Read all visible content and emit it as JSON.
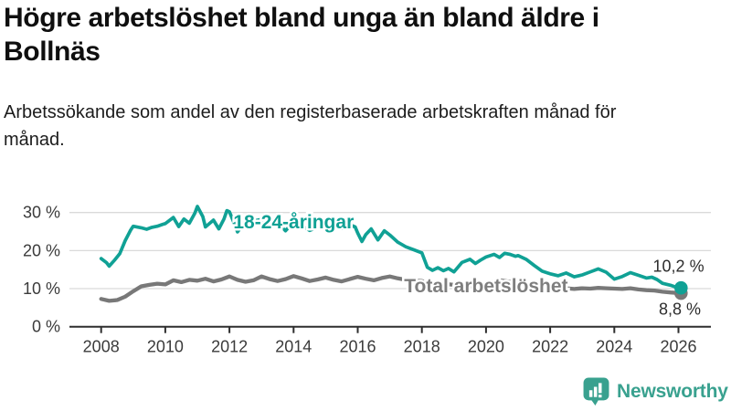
{
  "header": {
    "title": "Högre arbetslöshet bland unga än bland äldre i Bollnäs",
    "subtitle": "Arbetssökande som andel av den registerbaserade arbetskraften månad för månad."
  },
  "chart_data": {
    "type": "line",
    "title": "Högre arbetslöshet bland unga än bland äldre i Bollnäs",
    "subtitle": "Arbetssökande som andel av den registerbaserade arbetskraften månad för månad.",
    "x_axis": {
      "ticks": [
        2008,
        2010,
        2012,
        2014,
        2016,
        2018,
        2020,
        2022,
        2024,
        2026
      ],
      "tick_labels": [
        "2008",
        "2010",
        "2012",
        "2014",
        "2016",
        "2018",
        "2020",
        "2022",
        "2024",
        "2026"
      ],
      "range": [
        2007.0,
        2027.0
      ]
    },
    "y_axis": {
      "ticks": [
        0,
        10,
        20,
        30
      ],
      "tick_labels": [
        "0 %",
        "10 %",
        "20 %",
        "30 %"
      ],
      "range": [
        0,
        33
      ],
      "grid": true,
      "unit": "%"
    },
    "colors": {
      "grid": "#dadada",
      "axis": "#2e2e2e",
      "axis_text": "#3b3b3b",
      "young": "#10a195",
      "total": "#787878",
      "value_label": "#2d2d2d"
    },
    "series": [
      {
        "name": "18-24-åringar",
        "color": "#10a195",
        "end_label": "10,2 %",
        "end_value": 10.2,
        "points": [
          [
            2008.0,
            17.9
          ],
          [
            2008.17,
            16.8
          ],
          [
            2008.25,
            15.9
          ],
          [
            2008.42,
            17.5
          ],
          [
            2008.58,
            19.2
          ],
          [
            2008.75,
            22.6
          ],
          [
            2008.92,
            25.4
          ],
          [
            2009.0,
            26.4
          ],
          [
            2009.25,
            26.0
          ],
          [
            2009.42,
            25.6
          ],
          [
            2009.58,
            26.1
          ],
          [
            2009.75,
            26.4
          ],
          [
            2009.92,
            26.9
          ],
          [
            2010.0,
            27.1
          ],
          [
            2010.25,
            28.7
          ],
          [
            2010.42,
            26.3
          ],
          [
            2010.58,
            28.3
          ],
          [
            2010.75,
            27.2
          ],
          [
            2010.92,
            29.8
          ],
          [
            2011.0,
            31.6
          ],
          [
            2011.17,
            28.9
          ],
          [
            2011.25,
            26.2
          ],
          [
            2011.5,
            28.0
          ],
          [
            2011.67,
            25.7
          ],
          [
            2011.83,
            28.3
          ],
          [
            2011.92,
            30.5
          ],
          [
            2012.0,
            30.2
          ],
          [
            2012.17,
            26.7
          ],
          [
            2012.25,
            24.9
          ],
          [
            2012.5,
            27.7
          ],
          [
            2012.67,
            26.4
          ],
          [
            2012.83,
            27.9
          ],
          [
            2013.0,
            28.2
          ],
          [
            2013.25,
            26.1
          ],
          [
            2013.5,
            27.4
          ],
          [
            2013.75,
            25.2
          ],
          [
            2013.92,
            26.8
          ],
          [
            2014.0,
            27.1
          ],
          [
            2014.25,
            26.6
          ],
          [
            2014.5,
            25.3
          ],
          [
            2014.75,
            26.1
          ],
          [
            2015.0,
            25.5
          ],
          [
            2015.25,
            26.4
          ],
          [
            2015.5,
            25.8
          ],
          [
            2015.75,
            26.8
          ],
          [
            2015.92,
            26.2
          ],
          [
            2016.0,
            24.6
          ],
          [
            2016.13,
            22.4
          ],
          [
            2016.25,
            24.2
          ],
          [
            2016.42,
            25.7
          ],
          [
            2016.63,
            22.8
          ],
          [
            2016.83,
            25.2
          ],
          [
            2017.0,
            24.1
          ],
          [
            2017.25,
            22.2
          ],
          [
            2017.5,
            21.0
          ],
          [
            2017.75,
            20.2
          ],
          [
            2018.0,
            19.4
          ],
          [
            2018.17,
            15.6
          ],
          [
            2018.33,
            14.8
          ],
          [
            2018.5,
            15.5
          ],
          [
            2018.67,
            14.7
          ],
          [
            2018.83,
            15.3
          ],
          [
            2019.0,
            14.4
          ],
          [
            2019.25,
            16.9
          ],
          [
            2019.5,
            17.7
          ],
          [
            2019.67,
            16.6
          ],
          [
            2019.83,
            17.5
          ],
          [
            2020.0,
            18.3
          ],
          [
            2020.25,
            19.0
          ],
          [
            2020.42,
            18.2
          ],
          [
            2020.58,
            19.3
          ],
          [
            2020.75,
            19.0
          ],
          [
            2020.92,
            18.5
          ],
          [
            2021.0,
            18.7
          ],
          [
            2021.25,
            17.7
          ],
          [
            2021.5,
            16.1
          ],
          [
            2021.75,
            14.6
          ],
          [
            2021.92,
            14.1
          ],
          [
            2022.0,
            13.9
          ],
          [
            2022.25,
            13.4
          ],
          [
            2022.5,
            14.1
          ],
          [
            2022.75,
            13.1
          ],
          [
            2023.0,
            13.6
          ],
          [
            2023.25,
            14.4
          ],
          [
            2023.5,
            15.2
          ],
          [
            2023.75,
            14.3
          ],
          [
            2024.0,
            12.5
          ],
          [
            2024.25,
            13.2
          ],
          [
            2024.5,
            14.2
          ],
          [
            2024.75,
            13.5
          ],
          [
            2025.0,
            12.8
          ],
          [
            2025.17,
            13.0
          ],
          [
            2025.33,
            12.4
          ],
          [
            2025.5,
            11.4
          ],
          [
            2025.75,
            10.9
          ],
          [
            2025.92,
            10.4
          ],
          [
            2026.08,
            10.2
          ]
        ]
      },
      {
        "name": "Total arbetslöshet",
        "color": "#787878",
        "end_label": "8,8 %",
        "end_value": 8.8,
        "points": [
          [
            2008.0,
            7.3
          ],
          [
            2008.25,
            6.8
          ],
          [
            2008.5,
            7.0
          ],
          [
            2008.75,
            7.9
          ],
          [
            2009.0,
            9.3
          ],
          [
            2009.25,
            10.6
          ],
          [
            2009.5,
            11.0
          ],
          [
            2009.75,
            11.3
          ],
          [
            2010.0,
            11.1
          ],
          [
            2010.25,
            12.2
          ],
          [
            2010.5,
            11.7
          ],
          [
            2010.75,
            12.3
          ],
          [
            2011.0,
            12.1
          ],
          [
            2011.25,
            12.6
          ],
          [
            2011.5,
            11.9
          ],
          [
            2011.75,
            12.4
          ],
          [
            2012.0,
            13.2
          ],
          [
            2012.25,
            12.3
          ],
          [
            2012.5,
            11.8
          ],
          [
            2012.75,
            12.2
          ],
          [
            2013.0,
            13.2
          ],
          [
            2013.25,
            12.5
          ],
          [
            2013.5,
            12.0
          ],
          [
            2013.75,
            12.5
          ],
          [
            2014.0,
            13.3
          ],
          [
            2014.25,
            12.7
          ],
          [
            2014.5,
            12.0
          ],
          [
            2014.75,
            12.4
          ],
          [
            2015.0,
            12.9
          ],
          [
            2015.25,
            12.3
          ],
          [
            2015.5,
            11.9
          ],
          [
            2015.75,
            12.5
          ],
          [
            2016.0,
            13.1
          ],
          [
            2016.25,
            12.6
          ],
          [
            2016.5,
            12.2
          ],
          [
            2016.75,
            12.8
          ],
          [
            2017.0,
            13.2
          ],
          [
            2017.25,
            12.7
          ],
          [
            2017.5,
            12.3
          ],
          [
            2017.75,
            12.1
          ],
          [
            2018.0,
            12.0
          ],
          [
            2018.25,
            11.5
          ],
          [
            2018.5,
            11.1
          ],
          [
            2018.75,
            11.2
          ],
          [
            2019.0,
            11.0
          ],
          [
            2019.25,
            10.8
          ],
          [
            2019.5,
            10.6
          ],
          [
            2019.75,
            10.9
          ],
          [
            2020.0,
            11.1
          ],
          [
            2020.25,
            11.9
          ],
          [
            2020.5,
            12.1
          ],
          [
            2020.75,
            11.8
          ],
          [
            2021.0,
            11.5
          ],
          [
            2021.25,
            11.0
          ],
          [
            2021.5,
            10.6
          ],
          [
            2021.75,
            10.3
          ],
          [
            2022.0,
            10.2
          ],
          [
            2022.25,
            10.0
          ],
          [
            2022.5,
            10.1
          ],
          [
            2022.75,
            9.9
          ],
          [
            2023.0,
            10.1
          ],
          [
            2023.25,
            10.0
          ],
          [
            2023.5,
            10.2
          ],
          [
            2023.75,
            10.1
          ],
          [
            2024.0,
            10.0
          ],
          [
            2024.25,
            9.9
          ],
          [
            2024.5,
            10.1
          ],
          [
            2024.75,
            9.8
          ],
          [
            2025.0,
            9.6
          ],
          [
            2025.25,
            9.5
          ],
          [
            2025.5,
            9.2
          ],
          [
            2025.75,
            9.0
          ],
          [
            2026.08,
            8.8
          ]
        ]
      }
    ],
    "annotations": [
      {
        "text": "18-24-åringar",
        "x": 2014.0,
        "y": 27.6,
        "color": "#10a195",
        "weight": "bold",
        "size": 21,
        "halo": true,
        "anchor": "middle"
      },
      {
        "text": "Total arbetslöshet",
        "x": 2020.0,
        "y": 10.8,
        "color": "#7e7e7e",
        "weight": "bold",
        "size": 21,
        "halo": true,
        "anchor": "middle"
      },
      {
        "text": "10,2 %",
        "x": 2026.8,
        "y": 16.0,
        "color": "#2d2d2d",
        "weight": "normal",
        "size": 18,
        "halo": false,
        "anchor": "end"
      },
      {
        "text": "8,8 %",
        "x": 2026.7,
        "y": 4.7,
        "color": "#2d2d2d",
        "weight": "normal",
        "size": 18,
        "halo": false,
        "anchor": "end"
      }
    ],
    "legend_position": "inline-labels"
  },
  "footer": {
    "brand": "Newsworthy",
    "brand_color": "#39a18f",
    "logo_icon": "bar-chart-speech-bubble-icon"
  }
}
